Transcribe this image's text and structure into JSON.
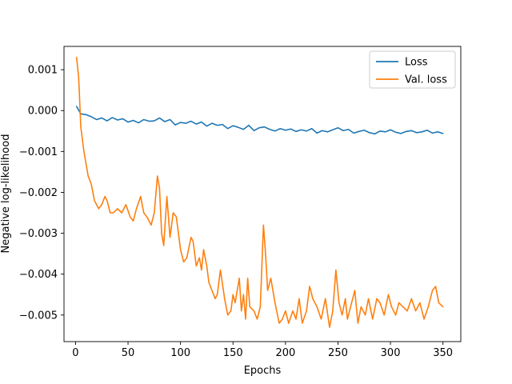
{
  "chart_data": {
    "type": "line",
    "title": "",
    "xlabel": "Epochs",
    "ylabel": "Negative log-likelihood",
    "xlim": [
      -11,
      367
    ],
    "ylim": [
      -0.00565,
      0.00157
    ],
    "xticks": [
      0,
      50,
      100,
      150,
      200,
      250,
      300,
      350
    ],
    "yticks": [
      0.001,
      0.0,
      -0.001,
      -0.002,
      -0.003,
      -0.004,
      -0.005
    ],
    "ytick_labels": [
      "0.001",
      "0.000",
      "−0.001",
      "−0.002",
      "−0.003",
      "−0.004",
      "−0.005"
    ],
    "grid": false,
    "legend_position": "top-right",
    "series": [
      {
        "name": "Loss",
        "color": "#1f77b4",
        "x": [
          1,
          5,
          10,
          15,
          20,
          25,
          30,
          35,
          40,
          45,
          50,
          55,
          60,
          65,
          70,
          75,
          80,
          85,
          90,
          95,
          100,
          105,
          110,
          115,
          120,
          125,
          130,
          135,
          140,
          145,
          150,
          155,
          160,
          165,
          170,
          175,
          180,
          185,
          190,
          195,
          200,
          205,
          210,
          215,
          220,
          225,
          230,
          235,
          240,
          245,
          250,
          255,
          260,
          265,
          270,
          275,
          280,
          285,
          290,
          295,
          300,
          305,
          310,
          315,
          320,
          325,
          330,
          335,
          340,
          345,
          350
        ],
        "y": [
          0.0001,
          -8e-05,
          -0.0001,
          -0.00015,
          -0.00022,
          -0.00018,
          -0.00025,
          -0.00017,
          -0.00023,
          -0.0002,
          -0.00028,
          -0.00024,
          -0.0003,
          -0.00022,
          -0.00026,
          -0.00025,
          -0.00018,
          -0.00027,
          -0.00022,
          -0.00035,
          -0.00029,
          -0.00031,
          -0.00026,
          -0.00033,
          -0.00028,
          -0.00038,
          -0.00031,
          -0.00036,
          -0.00034,
          -0.00044,
          -0.00037,
          -0.00041,
          -0.00046,
          -0.00036,
          -0.00049,
          -0.00042,
          -0.0004,
          -0.00046,
          -0.0005,
          -0.00044,
          -0.00048,
          -0.00045,
          -0.00051,
          -0.00047,
          -0.0005,
          -0.00044,
          -0.00055,
          -0.00049,
          -0.00052,
          -0.00047,
          -0.00042,
          -0.00049,
          -0.00046,
          -0.00055,
          -0.00051,
          -0.00048,
          -0.00054,
          -0.00057,
          -0.0005,
          -0.00052,
          -0.00047,
          -0.00053,
          -0.00056,
          -0.00051,
          -0.00049,
          -0.00054,
          -0.00052,
          -0.00048,
          -0.00055,
          -0.00052,
          -0.00056
        ]
      },
      {
        "name": "Val. loss",
        "color": "#ff7f0e",
        "x": [
          1,
          3,
          5,
          8,
          12,
          15,
          18,
          22,
          25,
          28,
          30,
          33,
          36,
          40,
          44,
          48,
          52,
          55,
          58,
          62,
          65,
          68,
          72,
          75,
          78,
          80,
          82,
          84,
          87,
          90,
          93,
          96,
          100,
          103,
          106,
          110,
          112,
          115,
          118,
          120,
          122,
          125,
          127,
          130,
          133,
          135,
          138,
          142,
          145,
          148,
          150,
          152,
          156,
          158,
          160,
          162,
          164,
          166,
          170,
          173,
          176,
          179,
          181,
          183,
          186,
          190,
          194,
          197,
          200,
          203,
          207,
          210,
          213,
          216,
          220,
          223,
          226,
          230,
          234,
          238,
          242,
          245,
          248,
          251,
          254,
          257,
          259,
          262,
          266,
          269,
          272,
          276,
          279,
          283,
          287,
          290,
          294,
          298,
          301,
          305,
          308,
          312,
          316,
          320,
          324,
          328,
          332,
          336,
          340,
          343,
          346,
          350
        ],
        "y": [
          0.0013,
          0.0008,
          -0.0004,
          -0.001,
          -0.0016,
          -0.0018,
          -0.0022,
          -0.0024,
          -0.0023,
          -0.0021,
          -0.0022,
          -0.0025,
          -0.0025,
          -0.0024,
          -0.0025,
          -0.0023,
          -0.0026,
          -0.0027,
          -0.0024,
          -0.0021,
          -0.0025,
          -0.0026,
          -0.0028,
          -0.0025,
          -0.0016,
          -0.0019,
          -0.003,
          -0.0033,
          -0.0021,
          -0.0031,
          -0.0025,
          -0.0026,
          -0.0034,
          -0.0037,
          -0.0036,
          -0.0031,
          -0.0032,
          -0.0038,
          -0.0036,
          -0.0039,
          -0.0034,
          -0.0038,
          -0.0042,
          -0.0044,
          -0.0046,
          -0.0045,
          -0.0039,
          -0.0046,
          -0.005,
          -0.0049,
          -0.0045,
          -0.0047,
          -0.0041,
          -0.0049,
          -0.0045,
          -0.0051,
          -0.0041,
          -0.0048,
          -0.0049,
          -0.0051,
          -0.0048,
          -0.0028,
          -0.0035,
          -0.0044,
          -0.0041,
          -0.0047,
          -0.0052,
          -0.0051,
          -0.0049,
          -0.0052,
          -0.0049,
          -0.0051,
          -0.0046,
          -0.0052,
          -0.0049,
          -0.0043,
          -0.0046,
          -0.0048,
          -0.0051,
          -0.0046,
          -0.0053,
          -0.0049,
          -0.0039,
          -0.0047,
          -0.005,
          -0.0046,
          -0.0051,
          -0.0048,
          -0.0044,
          -0.0052,
          -0.0048,
          -0.005,
          -0.0046,
          -0.0051,
          -0.0046,
          -0.0047,
          -0.005,
          -0.0045,
          -0.0048,
          -0.005,
          -0.0047,
          -0.0048,
          -0.0049,
          -0.0046,
          -0.0049,
          -0.0047,
          -0.0051,
          -0.0048,
          -0.0044,
          -0.0043,
          -0.0047,
          -0.0048
        ]
      }
    ]
  }
}
